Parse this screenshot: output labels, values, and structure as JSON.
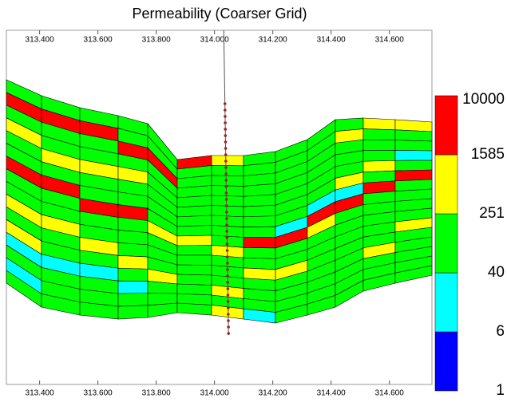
{
  "chart_data": {
    "type": "section",
    "title": "Permeability (Coarser Grid)",
    "xlim": [
      313.286,
      314.746
    ],
    "xticks": [
      {
        "value": 313.4,
        "label": "313.400"
      },
      {
        "value": 313.6,
        "label": "313.600"
      },
      {
        "value": 313.8,
        "label": "313.800"
      },
      {
        "value": 314.0,
        "label": "314.000"
      },
      {
        "value": 314.2,
        "label": "314.200"
      },
      {
        "value": 314.4,
        "label": "314.400"
      },
      {
        "value": 314.6,
        "label": "314.600"
      }
    ],
    "colorbar": {
      "levels": [
        1,
        6,
        40,
        251,
        1585,
        10000
      ],
      "colors": [
        "#0000ff",
        "#00ffff",
        "#00ff00",
        "#ffff00",
        "#ff0000"
      ]
    },
    "well": {
      "x": 314.04
    },
    "cells": [
      [
        100,
        5000,
        100,
        800,
        100,
        100,
        5000,
        100,
        100,
        800,
        100,
        800,
        20,
        100,
        20,
        100
      ],
      [
        100,
        5000,
        100,
        100,
        800,
        100,
        5000,
        100,
        100,
        800,
        100,
        100,
        20,
        100,
        100,
        100
      ],
      [
        100,
        5000,
        100,
        100,
        800,
        100,
        100,
        5000,
        100,
        100,
        800,
        100,
        20,
        100,
        100,
        100
      ],
      [
        100,
        100,
        5000,
        100,
        800,
        100,
        100,
        5000,
        100,
        100,
        100,
        800,
        100,
        20,
        100,
        100
      ],
      [
        100,
        100,
        5000,
        100,
        100,
        100,
        100,
        100,
        800,
        100,
        100,
        100,
        800,
        100,
        100,
        100
      ],
      [
        5000,
        100,
        100,
        100,
        100,
        100,
        100,
        100,
        800,
        100,
        100,
        100,
        100,
        100,
        100,
        100
      ],
      [
        800,
        100,
        100,
        100,
        100,
        100,
        100,
        100,
        100,
        800,
        100,
        100,
        100,
        800,
        100,
        800
      ],
      [
        100,
        100,
        100,
        100,
        100,
        100,
        100,
        100,
        5000,
        100,
        100,
        800,
        100,
        100,
        100,
        20
      ],
      [
        100,
        100,
        100,
        100,
        100,
        100,
        100,
        20,
        5000,
        100,
        100,
        800,
        100,
        100,
        100,
        100
      ],
      [
        100,
        100,
        100,
        100,
        100,
        100,
        20,
        5000,
        800,
        100,
        100,
        100,
        100,
        100,
        100,
        100
      ],
      [
        100,
        800,
        100,
        100,
        100,
        800,
        20,
        5000,
        100,
        100,
        100,
        100,
        100,
        100,
        100,
        100
      ],
      [
        800,
        100,
        100,
        100,
        800,
        100,
        5000,
        100,
        100,
        100,
        100,
        100,
        800,
        100,
        100,
        100
      ],
      [
        800,
        100,
        100,
        20,
        100,
        5000,
        100,
        100,
        100,
        100,
        800,
        100,
        100,
        100,
        100,
        100
      ]
    ]
  }
}
